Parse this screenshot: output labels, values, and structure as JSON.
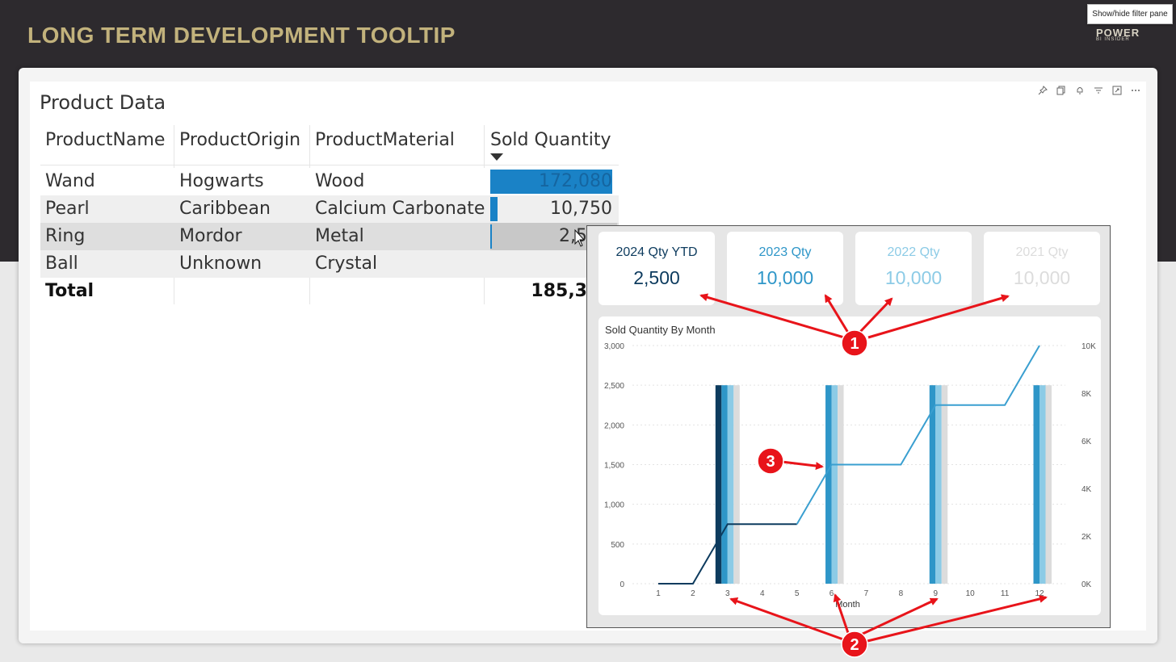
{
  "header": {
    "title": "LONG TERM DEVELOPMENT TOOLTIP",
    "filter_tooltip": "Show/hide filter pane"
  },
  "logo": {
    "main": "POWER",
    "sub": "BI INSIDER"
  },
  "table": {
    "title": "Product Data",
    "columns": [
      "ProductName",
      "ProductOrigin",
      "ProductMaterial",
      "Sold Quantity"
    ],
    "rows": [
      {
        "name": "Wand",
        "origin": "Hogwarts",
        "material": "Wood",
        "qty": "172,080",
        "qty_fraction": 1.0
      },
      {
        "name": "Pearl",
        "origin": "Caribbean",
        "material": "Calcium Carbonate",
        "qty": "10,750",
        "qty_fraction": 0.0625
      },
      {
        "name": "Ring",
        "origin": "Mordor",
        "material": "Metal",
        "qty": "2,5",
        "qty_fraction": 0.0145
      },
      {
        "name": "Ball",
        "origin": "Unknown",
        "material": "Crystal",
        "qty": "",
        "qty_fraction": 0
      }
    ],
    "total_label": "Total",
    "total_value": "185,3"
  },
  "cards": [
    {
      "label": "2024 Qty YTD",
      "value": "2,500",
      "color": "#0d3b5e"
    },
    {
      "label": "2023 Qty",
      "value": "10,000",
      "color": "#2e96c8"
    },
    {
      "label": "2022 Qty",
      "value": "10,000",
      "color": "#8ccbe6"
    },
    {
      "label": "2021 Qty",
      "value": "10,000",
      "color": "#dcdcdc"
    }
  ],
  "chart_data": {
    "type": "bar",
    "title": "Sold Quantity By Month",
    "xlabel": "Month",
    "categories": [
      1,
      2,
      3,
      4,
      5,
      6,
      7,
      8,
      9,
      10,
      11,
      12
    ],
    "ylim": [
      0,
      3000
    ],
    "y_ticks": [
      "0",
      "500",
      "1,000",
      "1,500",
      "2,000",
      "2,500",
      "3,000"
    ],
    "y2lim": [
      0,
      10000
    ],
    "y2_ticks": [
      "0K",
      "2K",
      "4K",
      "6K",
      "8K",
      "10K"
    ],
    "series": [
      {
        "values": [
          0,
          0,
          2500,
          0,
          0,
          0,
          0,
          0,
          0,
          0,
          0,
          0
        ],
        "color": "#0d3b5e"
      },
      {
        "values": [
          0,
          0,
          2500,
          0,
          0,
          2500,
          0,
          0,
          2500,
          0,
          0,
          2500
        ],
        "color": "#2e96c8"
      },
      {
        "values": [
          0,
          0,
          2500,
          0,
          0,
          2500,
          0,
          0,
          2500,
          0,
          0,
          2500
        ],
        "color": "#8ccbe6"
      },
      {
        "values": [
          0,
          0,
          2500,
          0,
          0,
          2500,
          0,
          0,
          2500,
          0,
          0,
          2500
        ],
        "color": "#dcdcdc"
      }
    ],
    "lines": [
      {
        "values": [
          0,
          0,
          2500,
          2500,
          2500
        ],
        "months": [
          1,
          2,
          3,
          4,
          5
        ],
        "color": "#0d3b5e"
      },
      {
        "values": [
          2500,
          5000,
          5000,
          5000,
          7500,
          7500,
          7500,
          10000
        ],
        "months": [
          5,
          6,
          7,
          8,
          9,
          10,
          11,
          12
        ],
        "color": "#3a9fd0"
      }
    ]
  },
  "annotations": {
    "one": "1",
    "two": "2",
    "three": "3"
  },
  "colors": {
    "arrow": "#e8141a",
    "accent": "#1a82c6"
  }
}
